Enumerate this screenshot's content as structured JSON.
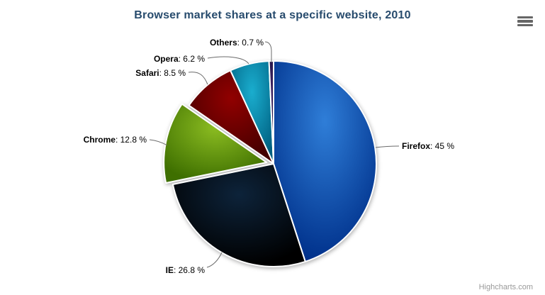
{
  "title": "Browser market shares at a specific website, 2010",
  "credits": "Highcharts.com",
  "export_menu": {
    "icon": "hamburger-menu-icon"
  },
  "colors": {
    "title_color": "#274b6d",
    "connector_color": "#6b6b6b",
    "slice_border_color": "#ffffff",
    "credits_color": "#999999",
    "menu_icon_color": "#666666"
  },
  "chart_data": {
    "type": "pie",
    "title": "Browser market shares at a specific website, 2010",
    "legend_position": "none",
    "start_angle_deg": 0,
    "direction": "clockwise",
    "label_format": "<b>{name}</b>: {value} %",
    "points": [
      {
        "name": "Firefox",
        "value": 45,
        "label": "Firefox: 45 %",
        "color": "#2f7ed8",
        "sliced": false
      },
      {
        "name": "IE",
        "value": 26.8,
        "label": "IE: 26.8 %",
        "color": "#0d233a",
        "sliced": false
      },
      {
        "name": "Chrome",
        "value": 12.8,
        "label": "Chrome: 12.8 %",
        "color": "#8bbc21",
        "sliced": true
      },
      {
        "name": "Safari",
        "value": 8.5,
        "label": "Safari: 8.5 %",
        "color": "#910000",
        "sliced": false
      },
      {
        "name": "Opera",
        "value": 6.2,
        "label": "Opera: 6.2 %",
        "color": "#1aadce",
        "sliced": false
      },
      {
        "name": "Others",
        "value": 0.7,
        "label": "Others: 0.7 %",
        "color": "#492970",
        "sliced": false
      }
    ]
  }
}
